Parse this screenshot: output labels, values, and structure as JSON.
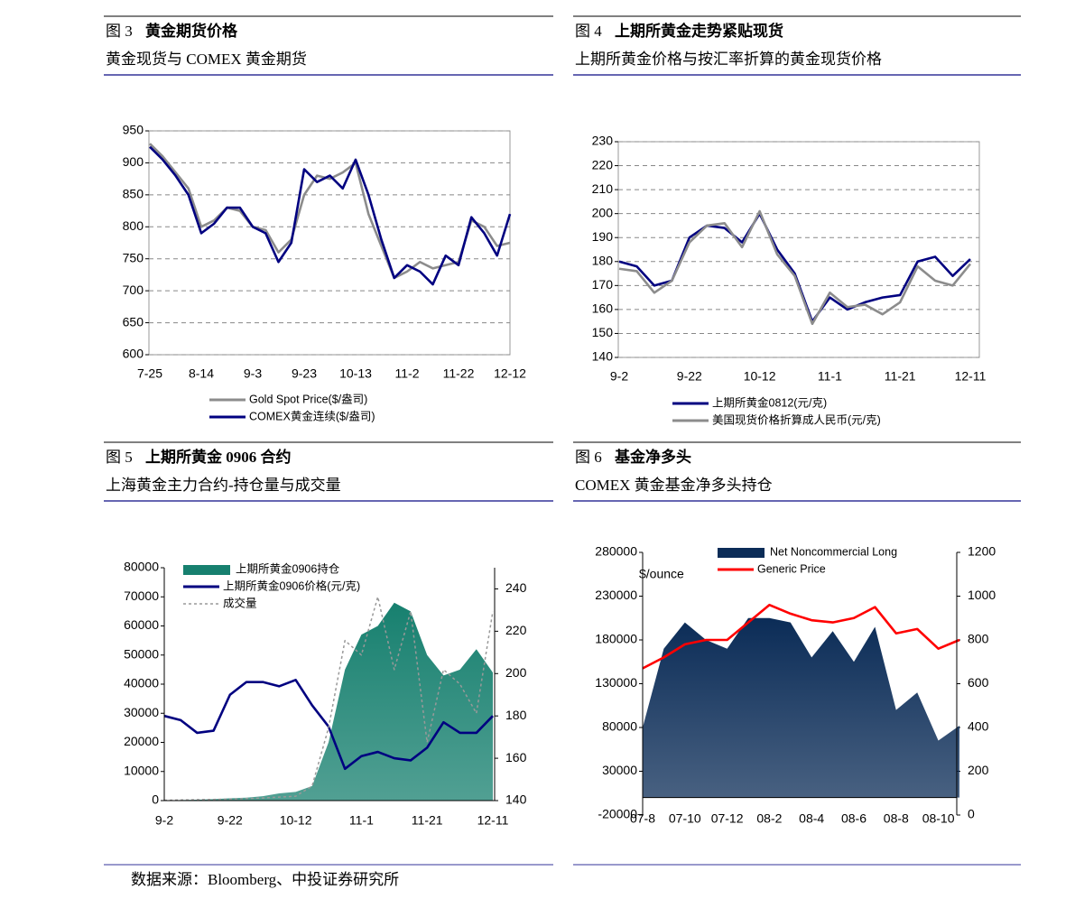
{
  "chart_data": [
    {
      "type": "line",
      "figure": "图 3",
      "title": "黄金期货价格",
      "subtitle": "黄金现货与 COMEX 黄金期货",
      "categories": [
        "7-25",
        null,
        null,
        null,
        "8-14",
        null,
        null,
        null,
        "9-3",
        null,
        null,
        null,
        "9-23",
        null,
        null,
        null,
        "10-13",
        null,
        null,
        null,
        "11-2",
        null,
        null,
        null,
        "11-22",
        null,
        null,
        null,
        "12-12"
      ],
      "series": [
        {
          "name": "Gold Spot Price($/盎司)",
          "color": "#8c8c8c",
          "values": [
            930,
            910,
            885,
            860,
            800,
            810,
            830,
            825,
            800,
            795,
            760,
            780,
            850,
            880,
            875,
            885,
            900,
            820,
            770,
            720,
            730,
            745,
            735,
            740,
            745,
            810,
            800,
            770,
            775
          ]
        },
        {
          "name": "COMEX黄金连续($/盎司)",
          "color": "#000080",
          "values": [
            925,
            905,
            880,
            850,
            790,
            805,
            830,
            830,
            800,
            790,
            745,
            775,
            890,
            870,
            880,
            860,
            905,
            850,
            780,
            720,
            740,
            730,
            710,
            755,
            740,
            815,
            790,
            755,
            820
          ]
        }
      ],
      "ylim": [
        600,
        950
      ],
      "yticks": [
        600,
        650,
        700,
        750,
        800,
        850,
        900,
        950
      ],
      "grid": true
    },
    {
      "type": "line",
      "figure": "图 4",
      "title": "上期所黄金走势紧贴现货",
      "subtitle": "上期所黄金价格与按汇率折算的黄金现货价格",
      "categories": [
        "9-2",
        null,
        null,
        null,
        "9-22",
        null,
        null,
        null,
        "10-12",
        null,
        null,
        null,
        "11-1",
        null,
        null,
        null,
        "11-21",
        null,
        null,
        null,
        "12-11"
      ],
      "series": [
        {
          "name": "上期所黄金0812(元/克)",
          "color": "#000080",
          "values": [
            180,
            178,
            170,
            172,
            190,
            195,
            194,
            188,
            200,
            185,
            175,
            155,
            165,
            160,
            163,
            165,
            166,
            180,
            182,
            174,
            181
          ]
        },
        {
          "name": "美国现货价格折算成人民币(元/克)",
          "color": "#8c8c8c",
          "values": [
            177,
            176,
            167,
            172,
            188,
            195,
            196,
            186,
            201,
            183,
            174,
            154,
            167,
            161,
            162,
            158,
            163,
            178,
            172,
            170,
            179
          ]
        }
      ],
      "ylim": [
        140,
        230
      ],
      "yticks": [
        140,
        150,
        160,
        170,
        180,
        190,
        200,
        210,
        220,
        230
      ],
      "grid": true
    },
    {
      "type": "combo",
      "figure": "图 5",
      "title": "上期所黄金 0906 合约",
      "subtitle": "上海黄金主力合约-持仓量与成交量",
      "categories": [
        "9-2",
        null,
        null,
        null,
        "9-22",
        null,
        null,
        null,
        "10-12",
        null,
        null,
        null,
        "11-1",
        null,
        null,
        null,
        "11-21",
        null,
        null,
        null,
        "12-11"
      ],
      "series": [
        {
          "name": "上期所黄金0906持仓",
          "type": "area",
          "color": "#17806f",
          "values": [
            0,
            200,
            300,
            500,
            800,
            1000,
            1500,
            2500,
            3000,
            5000,
            20000,
            45000,
            57000,
            60000,
            68000,
            65000,
            50000,
            43000,
            45000,
            52000,
            44000
          ]
        },
        {
          "name": "上期所黄金0906价格(元/克)",
          "type": "line",
          "axis": "y2",
          "color": "#000080",
          "values": [
            180,
            178,
            172,
            173,
            190,
            196,
            196,
            194,
            197,
            185,
            175,
            155,
            161,
            163,
            160,
            159,
            165,
            177,
            172,
            172,
            180
          ]
        },
        {
          "name": "成交量",
          "type": "line",
          "style": "dotted",
          "color": "#999999",
          "values": [
            100,
            200,
            300,
            400,
            500,
            700,
            900,
            1200,
            1500,
            5000,
            25000,
            55000,
            50000,
            70000,
            45000,
            65000,
            20000,
            45000,
            40000,
            30000,
            65000
          ]
        }
      ],
      "ylim": [
        0,
        80000
      ],
      "yticks": [
        0,
        10000,
        20000,
        30000,
        40000,
        50000,
        60000,
        70000,
        80000
      ],
      "y2lim": [
        140,
        250
      ],
      "y2ticks": [
        140,
        160,
        180,
        200,
        220,
        240
      ],
      "grid": false
    },
    {
      "type": "combo",
      "figure": "图 6",
      "title": "基金净多头",
      "subtitle": "COMEX 黄金基金净多头持仓",
      "annotation": "$/ounce",
      "categories": [
        "07-8",
        null,
        "07-10",
        null,
        "07-12",
        null,
        "08-2",
        null,
        "08-4",
        null,
        "08-6",
        null,
        "08-8",
        null,
        "08-10",
        null
      ],
      "series": [
        {
          "name": "Net Noncommercial Long",
          "type": "area",
          "color": "#0b2c57",
          "values": [
            80000,
            170000,
            200000,
            180000,
            170000,
            205000,
            205000,
            200000,
            160000,
            190000,
            155000,
            195000,
            100000,
            120000,
            65000,
            82000
          ]
        },
        {
          "name": "Generic Price",
          "type": "line",
          "axis": "y2",
          "color": "#ff0000",
          "values": [
            670,
            720,
            780,
            800,
            800,
            880,
            960,
            920,
            890,
            880,
            900,
            950,
            830,
            850,
            760,
            800
          ]
        }
      ],
      "ylim": [
        -20000,
        280000
      ],
      "yticks": [
        -20000,
        30000,
        80000,
        130000,
        180000,
        230000,
        280000
      ],
      "y2lim": [
        0,
        1200
      ],
      "y2ticks": [
        0,
        200,
        400,
        600,
        800,
        1000,
        1200
      ],
      "grid": false
    }
  ],
  "source": "数据来源：Bloomberg、中投证券研究所"
}
